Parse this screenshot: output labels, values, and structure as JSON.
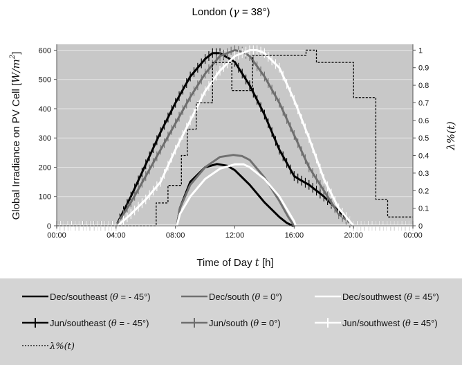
{
  "chart_data": {
    "type": "line",
    "title": "London (γ = 38°)",
    "title_prefix": "London (",
    "title_symbol": "γ",
    "title_suffix": " = 38°)",
    "xlabel_prefix": "Time of Day ",
    "xlabel_symbol": "t",
    "xlabel_suffix": " [h]",
    "ylabel_prefix": "Global Irradiance on PV Cell [",
    "ylabel_math": "W/m",
    "ylabel_sup": "2",
    "ylabel_suffix": "]",
    "y2label": "λ%(t)",
    "xlim": [
      0,
      24
    ],
    "ylim": [
      0,
      620
    ],
    "y2lim": [
      0,
      1.033
    ],
    "x_ticks": [
      0,
      4,
      8,
      12,
      16,
      20,
      24
    ],
    "x_tick_labels": [
      "00:00",
      "04:00",
      "08:00",
      "12:00",
      "16:00",
      "20:00",
      "00:00"
    ],
    "y_ticks": [
      0,
      100,
      200,
      300,
      400,
      500,
      600
    ],
    "y_tick_labels": [
      "0",
      "100",
      "200",
      "300",
      "400",
      "500",
      "600"
    ],
    "y2_ticks": [
      0,
      0.1,
      0.2,
      0.3,
      0.4,
      0.5,
      0.6,
      0.7,
      0.8,
      0.9,
      1
    ],
    "y2_tick_labels": [
      "0",
      "0.1",
      "0.2",
      "0.3",
      "0.4",
      "0.5",
      "0.6",
      "0.7",
      "0.8",
      "0.9",
      "1"
    ],
    "grid": true,
    "plot_background": "#c8c8c8",
    "legend_background": "#d4d4d4",
    "series": [
      {
        "key": "dec_se",
        "name_prefix": "Dec/southeast (",
        "name_symbol": "θ",
        "name_suffix": " = - 45°)",
        "color": "#000000",
        "markers": false,
        "axis": "left",
        "x": [
          0,
          8.1,
          8.3,
          9,
          10,
          10.8,
          11.5,
          12,
          13,
          14,
          15,
          15.5,
          15.9,
          16.1,
          24
        ],
        "y": [
          0,
          0,
          60,
          150,
          200,
          211,
          205,
          190,
          140,
          80,
          30,
          10,
          0,
          0,
          0
        ]
      },
      {
        "key": "dec_s",
        "name_prefix": "Dec/south (",
        "name_symbol": "θ",
        "name_suffix": " = 0°)",
        "color": "#707070",
        "markers": false,
        "axis": "left",
        "x": [
          0,
          8.1,
          8.3,
          9,
          10,
          11,
          11.9,
          12.5,
          13,
          14,
          15,
          15.6,
          16,
          24
        ],
        "y": [
          0,
          0,
          60,
          140,
          200,
          235,
          242,
          238,
          225,
          165,
          85,
          30,
          0,
          0
        ]
      },
      {
        "key": "dec_sw",
        "name_prefix": "Dec/southwest (",
        "name_symbol": "θ",
        "name_suffix": " = 45°)",
        "color": "#ffffff",
        "markers": false,
        "axis": "left",
        "x": [
          0,
          8.1,
          8.3,
          9,
          10,
          11,
          12,
          12.6,
          13,
          14,
          15,
          16,
          16.1,
          24
        ],
        "y": [
          0,
          0,
          40,
          100,
          160,
          195,
          210,
          210,
          200,
          160,
          100,
          15,
          0,
          0
        ]
      },
      {
        "key": "jun_se",
        "name_prefix": "Jun/southeast (",
        "name_symbol": "θ",
        "name_suffix": " = - 45°)",
        "color": "#000000",
        "markers": true,
        "axis": "left",
        "x": [
          0,
          4,
          5,
          6,
          7,
          8,
          9,
          10,
          10.5,
          11,
          12,
          13,
          14,
          15,
          16,
          16.3,
          17,
          18,
          19,
          20,
          24
        ],
        "y": [
          0,
          0,
          100,
          210,
          320,
          420,
          510,
          570,
          590,
          590,
          560,
          480,
          380,
          260,
          170,
          160,
          140,
          100,
          50,
          0,
          0
        ]
      },
      {
        "key": "jun_s",
        "name_prefix": "Jun/south (",
        "name_symbol": "θ",
        "name_suffix": " = 0°)",
        "color": "#6e6e6e",
        "markers": true,
        "axis": "left",
        "x": [
          0,
          4,
          5,
          6,
          7,
          8,
          9,
          10,
          11,
          12,
          12.5,
          13,
          14,
          15,
          16,
          17,
          18,
          19,
          20,
          24
        ],
        "y": [
          0,
          0,
          80,
          170,
          260,
          350,
          440,
          520,
          580,
          600,
          595,
          580,
          510,
          420,
          310,
          200,
          120,
          40,
          0,
          0
        ]
      },
      {
        "key": "jun_sw",
        "name_prefix": "Jun/southwest (",
        "name_symbol": "θ",
        "name_suffix": " = 45°)",
        "color": "#ffffff",
        "markers": true,
        "axis": "left",
        "x": [
          0,
          4.1,
          5,
          6,
          7,
          8,
          9,
          10,
          11,
          12,
          13,
          13.5,
          14,
          15,
          16,
          17,
          18,
          19,
          20,
          24
        ],
        "y": [
          0,
          0,
          40,
          90,
          150,
          260,
          360,
          460,
          530,
          580,
          600,
          600,
          590,
          540,
          430,
          300,
          160,
          60,
          0,
          0
        ]
      },
      {
        "key": "lambda",
        "name_prefix": "",
        "name_symbol": "λ%(t)",
        "name_suffix": "",
        "color": "#000000",
        "dashed": true,
        "markers": false,
        "axis": "right",
        "x": [
          0,
          6.7,
          6.7,
          7.5,
          7.5,
          8.4,
          8.4,
          8.8,
          8.8,
          9.4,
          9.4,
          10.5,
          10.5,
          11.8,
          11.8,
          13.2,
          13.2,
          16.8,
          16.8,
          17.5,
          17.5,
          20,
          20,
          21.5,
          21.5,
          22.3,
          22.3,
          24
        ],
        "y": [
          0,
          0,
          0.13,
          0.13,
          0.23,
          0.23,
          0.4,
          0.4,
          0.55,
          0.55,
          0.7,
          0.7,
          0.93,
          0.93,
          0.77,
          0.77,
          0.97,
          0.97,
          1,
          1,
          0.93,
          0.93,
          0.73,
          0.73,
          0.15,
          0.15,
          0.05,
          0.05
        ]
      }
    ]
  }
}
